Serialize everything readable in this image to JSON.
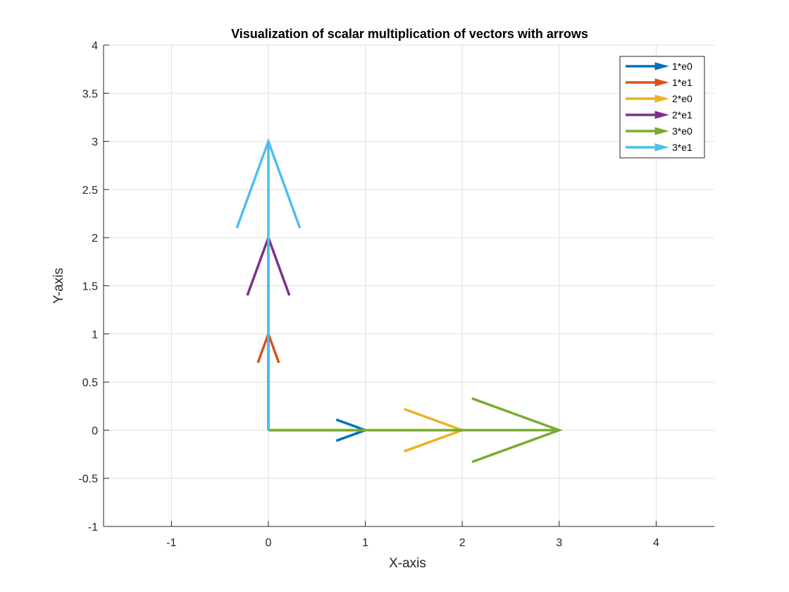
{
  "chart_data": {
    "type": "quiver",
    "title": "Visualization of scalar multiplication of vectors with arrows",
    "xlabel": "X-axis",
    "ylabel": "Y-axis",
    "xlim": [
      -1.7,
      4.6
    ],
    "ylim": [
      -1,
      4
    ],
    "xticks": [
      -1,
      0,
      1,
      2,
      3,
      4
    ],
    "xtick_labels": [
      "-1",
      "0",
      "1",
      "2",
      "3",
      "4"
    ],
    "yticks": [
      -1,
      -0.5,
      0,
      0.5,
      1,
      1.5,
      2,
      2.5,
      3,
      3.5,
      4
    ],
    "ytick_labels": [
      "-1",
      "-0.5",
      "0",
      "0.5",
      "1",
      "1.5",
      "2",
      "2.5",
      "3",
      "3.5",
      "4"
    ],
    "grid": true,
    "legend_position": "top-right",
    "series": [
      {
        "name": "1*e0",
        "color": "#0072BD",
        "start": [
          0,
          0
        ],
        "end": [
          1,
          0
        ]
      },
      {
        "name": "1*e1",
        "color": "#D95319",
        "start": [
          0,
          0
        ],
        "end": [
          0,
          1
        ]
      },
      {
        "name": "2*e0",
        "color": "#EDB120",
        "start": [
          0,
          0
        ],
        "end": [
          2,
          0
        ]
      },
      {
        "name": "2*e1",
        "color": "#7E2F8E",
        "start": [
          0,
          0
        ],
        "end": [
          0,
          2
        ]
      },
      {
        "name": "3*e0",
        "color": "#77AC30",
        "start": [
          0,
          0
        ],
        "end": [
          3,
          0
        ]
      },
      {
        "name": "3*e1",
        "color": "#4DBEEE",
        "start": [
          0,
          0
        ],
        "end": [
          0,
          3
        ]
      }
    ]
  }
}
